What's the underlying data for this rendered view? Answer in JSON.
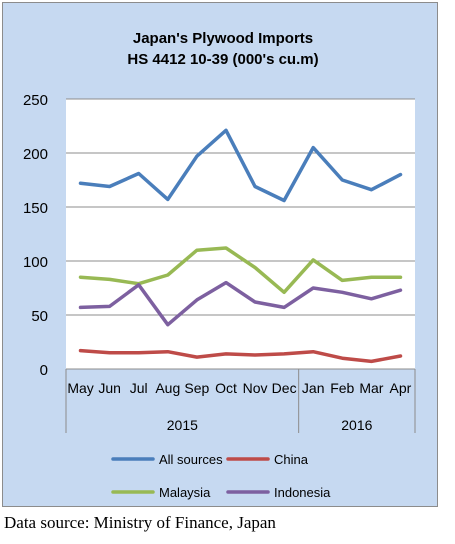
{
  "chart_data": {
    "type": "line",
    "title": "Japan's Plywood Imports",
    "subtitle": "HS 4412 10-39  (000's cu.m)",
    "categories": [
      "May",
      "Jun",
      "Jul",
      "Aug",
      "Sep",
      "Oct",
      "Nov",
      "Dec",
      "Jan",
      "Feb",
      "Mar",
      "Apr"
    ],
    "year_groups": [
      {
        "label": "2015",
        "months": 8
      },
      {
        "label": "2016",
        "months": 4
      }
    ],
    "yticks": [
      0,
      50,
      100,
      150,
      200,
      250
    ],
    "ylim": [
      0,
      250
    ],
    "grid": true,
    "legend_position": "bottom",
    "series": [
      {
        "name": "All sources",
        "color": "#4a7ebb",
        "values": [
          172,
          169,
          181,
          157,
          197,
          221,
          169,
          156,
          205,
          175,
          166,
          180
        ]
      },
      {
        "name": "China",
        "color": "#be4b48",
        "values": [
          17,
          15,
          15,
          16,
          11,
          14,
          13,
          14,
          16,
          10,
          7,
          12
        ]
      },
      {
        "name": "Malaysia",
        "color": "#98b954",
        "values": [
          85,
          83,
          79,
          87,
          110,
          112,
          94,
          71,
          101,
          82,
          85,
          85
        ]
      },
      {
        "name": "Indonesia",
        "color": "#7d60a0",
        "values": [
          57,
          58,
          78,
          41,
          64,
          80,
          62,
          57,
          75,
          71,
          65,
          73
        ]
      }
    ]
  },
  "source": "Data source: Ministry of Finance, Japan"
}
